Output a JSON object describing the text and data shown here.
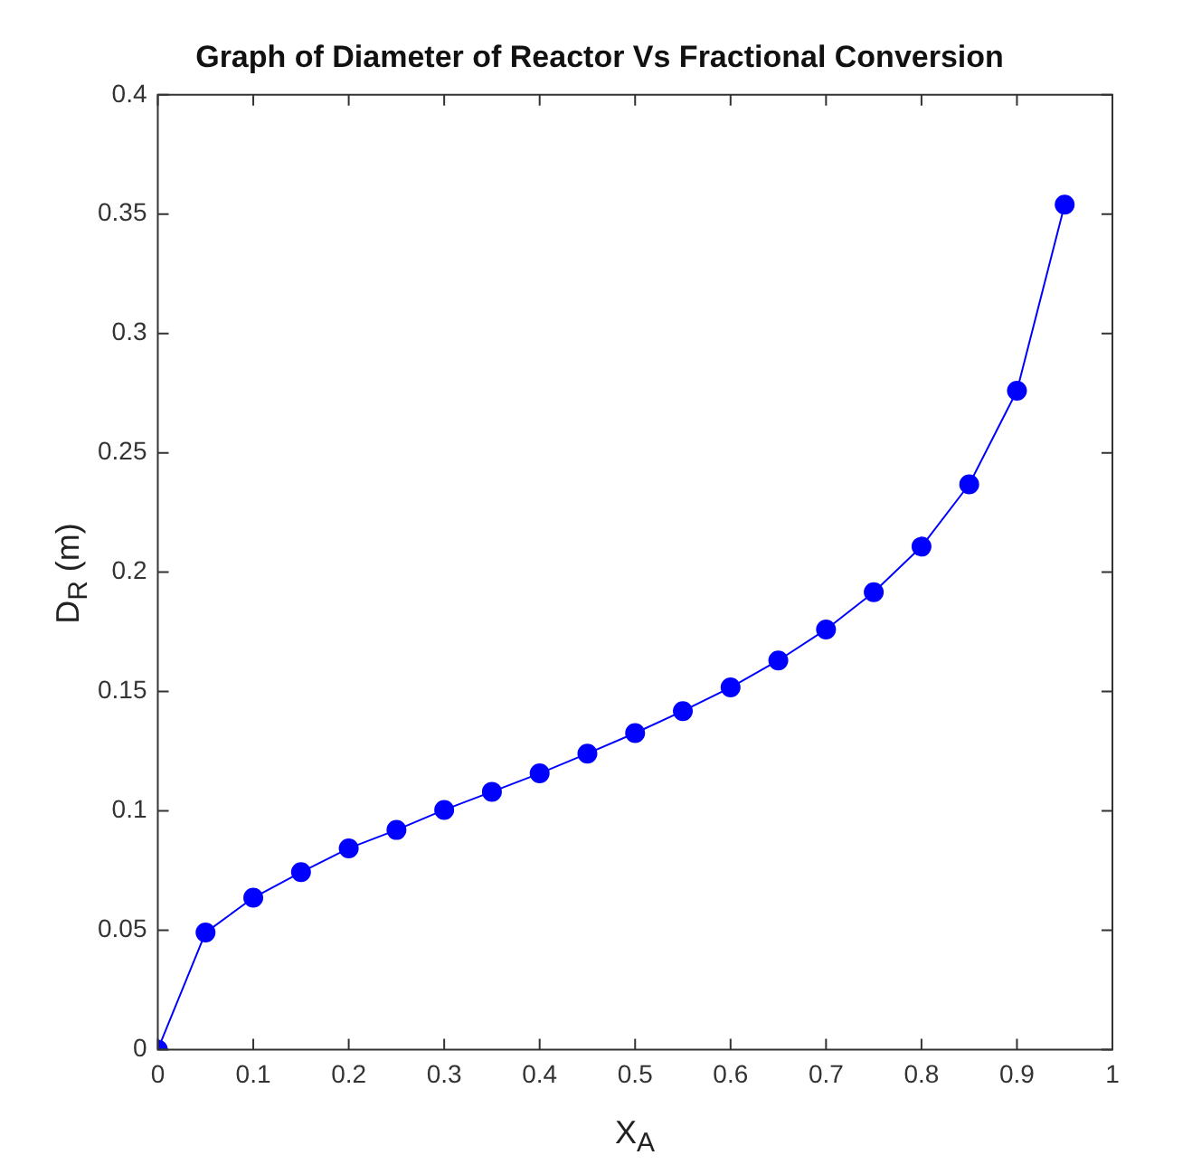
{
  "chart_data": {
    "type": "line",
    "title": "Graph of Diameter of Reactor Vs Fractional Conversion",
    "xlabel": "X$_{A}$",
    "ylabel": "D$_{R}$ (m)",
    "x": [
      0,
      0.05,
      0.1,
      0.15,
      0.2,
      0.25,
      0.3,
      0.35,
      0.4,
      0.45,
      0.5,
      0.55,
      0.6,
      0.65,
      0.7,
      0.75,
      0.8,
      0.85,
      0.9,
      0.95
    ],
    "series": [
      {
        "color": "#0000ff",
        "values": [
          0,
          0.049,
          0.0636,
          0.0743,
          0.0843,
          0.092,
          0.1004,
          0.108,
          0.1157,
          0.124,
          0.1326,
          0.1418,
          0.1517,
          0.163,
          0.176,
          0.1916,
          0.2107,
          0.2368,
          0.276,
          0.354
        ]
      }
    ],
    "xlim": [
      0,
      1
    ],
    "xticks": [
      0,
      0.1,
      0.2,
      0.3,
      0.4,
      0.5,
      0.6,
      0.7,
      0.8,
      0.9,
      1
    ],
    "ylim": [
      0,
      0.4
    ],
    "yticks": [
      0,
      0.05,
      0.1,
      0.15,
      0.2,
      0.25,
      0.3,
      0.35,
      0.4
    ],
    "grid": false,
    "legend": false,
    "marker": "circle",
    "line_style": "solid"
  }
}
